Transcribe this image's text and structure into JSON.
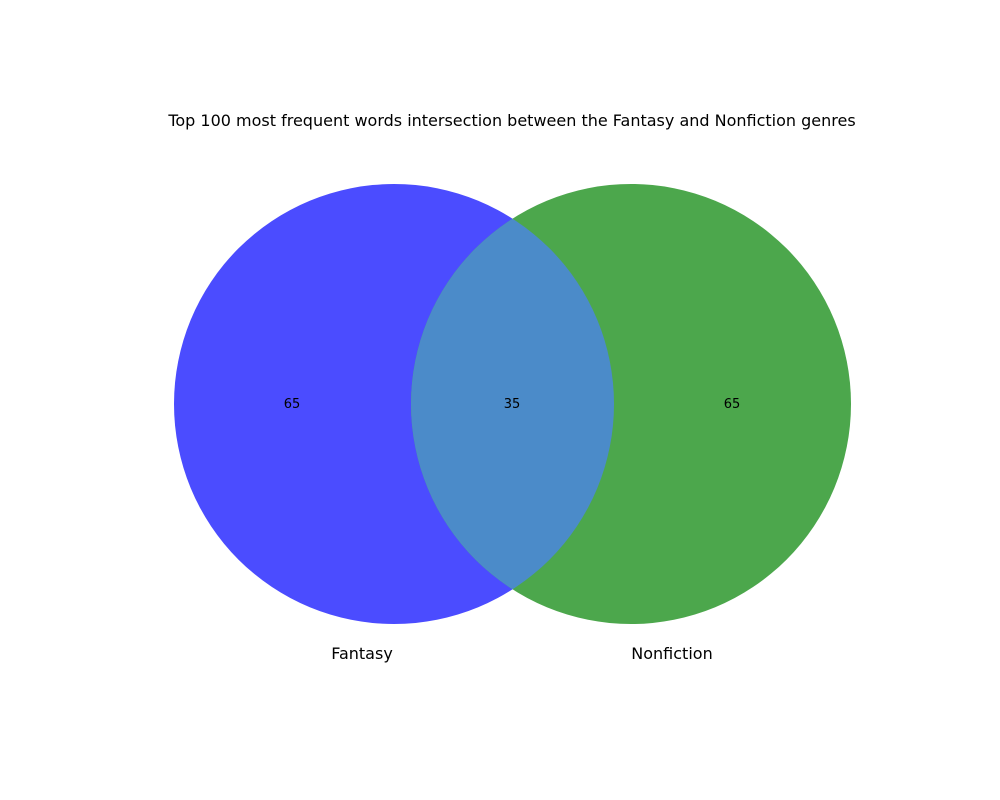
{
  "diagram": {
    "title": "Top 100 most frequent words intersection between the Fantasy and Nonfiction genres",
    "sets": [
      {
        "label": "Fantasy",
        "color": "#4b4cff"
      },
      {
        "label": "Nonfiction",
        "color": "#4ca74c"
      }
    ],
    "intersection_color": "#4b8bc9",
    "counts": {
      "left_only": "65",
      "both": "35",
      "right_only": "65"
    }
  }
}
